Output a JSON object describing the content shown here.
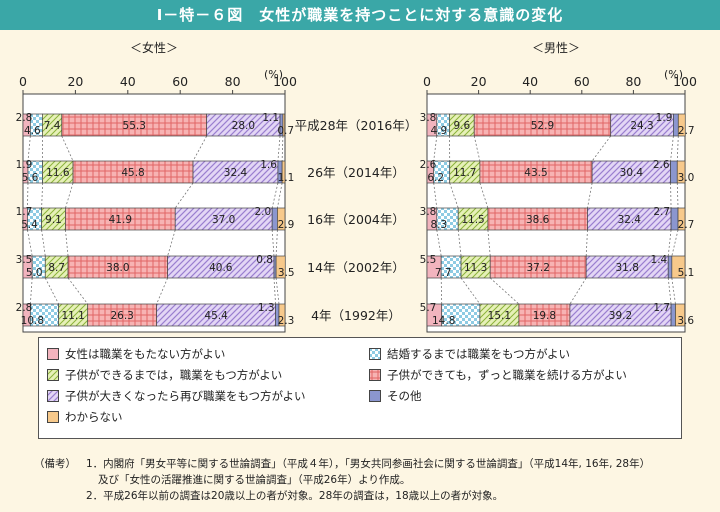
{
  "figure_title": "Ⅰ－特－６図　女性が職業を持つことに対する意識の変化",
  "colors": {
    "banner": "#3aa7a7",
    "no_job": "#f2b4be",
    "until_marriage": "#9fd3e8",
    "until_child": "#c9dd7c",
    "continue": "#f08a8a",
    "return": "#c9b3e8",
    "other": "#7b88c8",
    "unknown": "#f7c98b"
  },
  "chart_data": {
    "type": "stacked_horizontal_bar",
    "unit_label": "(%)",
    "xlim": [
      0,
      100
    ],
    "xticks": [
      "0",
      "20",
      "40",
      "60",
      "80",
      "100"
    ],
    "categories": [
      "平成28年（2016年）",
      "26年（2014年）",
      "16年（2004年）",
      "14年（2002年）",
      "4年（1992年）"
    ],
    "panels": [
      {
        "title": "＜女性＞",
        "series": [
          {
            "key": "no_job",
            "values": [
              2.8,
              1.9,
              1.7,
              3.5,
              2.8
            ]
          },
          {
            "key": "until_marriage",
            "values": [
              4.6,
              5.6,
              5.4,
              5.0,
              10.8
            ]
          },
          {
            "key": "until_child",
            "values": [
              7.4,
              11.6,
              9.1,
              8.7,
              11.1
            ]
          },
          {
            "key": "continue",
            "values": [
              55.3,
              45.8,
              41.9,
              38.0,
              26.3
            ]
          },
          {
            "key": "return",
            "values": [
              28.0,
              32.4,
              37.0,
              40.6,
              45.4
            ]
          },
          {
            "key": "other",
            "values": [
              1.1,
              1.6,
              2.0,
              0.8,
              1.3
            ]
          },
          {
            "key": "unknown",
            "values": [
              0.7,
              1.1,
              2.9,
              3.5,
              2.3
            ]
          }
        ],
        "value_labels": [
          [
            "2.8",
            "4.6",
            "7.4",
            "55.3",
            "28.0",
            "1.1",
            "0.7"
          ],
          [
            "1.9",
            "5.6",
            "11.6",
            "45.8",
            "32.4",
            "1.6",
            "1.1"
          ],
          [
            "1.7",
            "5.4",
            "9.1",
            "41.9",
            "37.0",
            "2.0",
            "2.9"
          ],
          [
            "3.5",
            "5.0",
            "8.7",
            "38.0",
            "40.6",
            "0.8",
            "3.5"
          ],
          [
            "2.8",
            "10.8",
            "11.1",
            "26.3",
            "45.4",
            "1.3",
            "2.3"
          ]
        ]
      },
      {
        "title": "＜男性＞",
        "series": [
          {
            "key": "no_job",
            "values": [
              3.8,
              2.6,
              3.8,
              5.5,
              5.7
            ]
          },
          {
            "key": "until_marriage",
            "values": [
              4.9,
              6.2,
              8.3,
              7.7,
              14.8
            ]
          },
          {
            "key": "until_child",
            "values": [
              9.6,
              11.7,
              11.5,
              11.3,
              15.1
            ]
          },
          {
            "key": "continue",
            "values": [
              52.9,
              43.5,
              38.6,
              37.2,
              19.8
            ]
          },
          {
            "key": "return",
            "values": [
              24.3,
              30.4,
              32.4,
              31.8,
              39.2
            ]
          },
          {
            "key": "other",
            "values": [
              1.9,
              2.6,
              2.7,
              1.4,
              1.7
            ]
          },
          {
            "key": "unknown",
            "values": [
              2.7,
              3.0,
              2.7,
              5.1,
              3.6
            ]
          }
        ],
        "value_labels": [
          [
            "3.8",
            "4.9",
            "9.6",
            "52.9",
            "24.3",
            "1.9",
            "2.7"
          ],
          [
            "2.6",
            "6.2",
            "11.7",
            "43.5",
            "30.4",
            "2.6",
            "3.0"
          ],
          [
            "3.8",
            "8.3",
            "11.5",
            "38.6",
            "32.4",
            "2.7",
            "2.7"
          ],
          [
            "5.5",
            "7.7",
            "11.3",
            "37.2",
            "31.8",
            "1.4",
            "5.1"
          ],
          [
            "5.7",
            "14.8",
            "15.1",
            "19.8",
            "39.2",
            "1.7",
            "3.6"
          ]
        ]
      }
    ]
  },
  "legend": [
    {
      "key": "no_job",
      "label": "女性は職業をもたない方がよい"
    },
    {
      "key": "until_marriage",
      "label": "結婚するまでは職業をもつ方がよい"
    },
    {
      "key": "until_child",
      "label": "子供ができるまでは，職業をもつ方がよい"
    },
    {
      "key": "continue",
      "label": "子供ができても，ずっと職業を続ける方がよい"
    },
    {
      "key": "return",
      "label": "子供が大きくなったら再び職業をもつ方がよい"
    },
    {
      "key": "other",
      "label": "その他"
    },
    {
      "key": "unknown",
      "label": "わからない"
    }
  ],
  "notes": {
    "label": "（備考）",
    "line1": "1．内閣府「男女平等に関する世論調査」（平成４年），「男女共同参画社会に関する世論調査」（平成14年, 16年, 28年）",
    "line2": "及び「女性の活躍推進に関する世論調査」（平成26年）より作成。",
    "line3": "2．平成26年以前の調査は20歳以上の者が対象。28年の調査は，18歳以上の者が対象。"
  }
}
